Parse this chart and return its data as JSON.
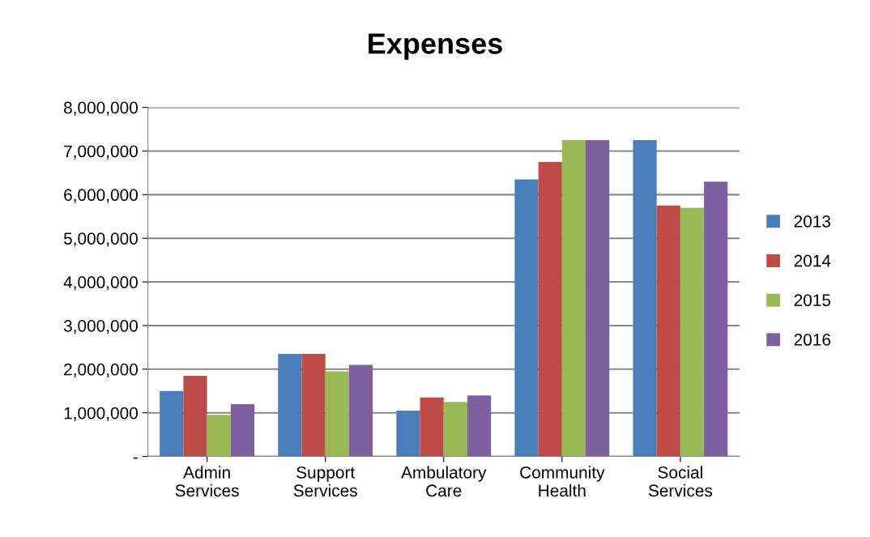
{
  "chart_data": {
    "type": "bar",
    "title": "Expenses",
    "categories": [
      "Admin\nServices",
      "Support\nServices",
      "Ambulatory\nCare",
      "Community\nHealth",
      "Social\nServices"
    ],
    "series": [
      {
        "name": "2013",
        "color": "#4a7ebb",
        "values": [
          1500000,
          2350000,
          1050000,
          6350000,
          7250000
        ]
      },
      {
        "name": "2014",
        "color": "#be4b48",
        "values": [
          1850000,
          2350000,
          1350000,
          6750000,
          5750000
        ]
      },
      {
        "name": "2015",
        "color": "#98b954",
        "values": [
          950000,
          1950000,
          1250000,
          7250000,
          5700000
        ]
      },
      {
        "name": "2016",
        "color": "#7d60a0",
        "values": [
          1200000,
          2100000,
          1400000,
          7250000,
          6300000
        ]
      }
    ],
    "ylim": [
      0,
      8000000
    ],
    "yticks": [
      {
        "value": 0,
        "label": "-"
      },
      {
        "value": 1000000,
        "label": "1,000,000"
      },
      {
        "value": 2000000,
        "label": "2,000,000"
      },
      {
        "value": 3000000,
        "label": "3,000,000"
      },
      {
        "value": 4000000,
        "label": "4,000,000"
      },
      {
        "value": 5000000,
        "label": "5,000,000"
      },
      {
        "value": 6000000,
        "label": "6,000,000"
      },
      {
        "value": 7000000,
        "label": "7,000,000"
      },
      {
        "value": 8000000,
        "label": "8,000,000"
      }
    ],
    "grid": "y",
    "legend": "right"
  }
}
